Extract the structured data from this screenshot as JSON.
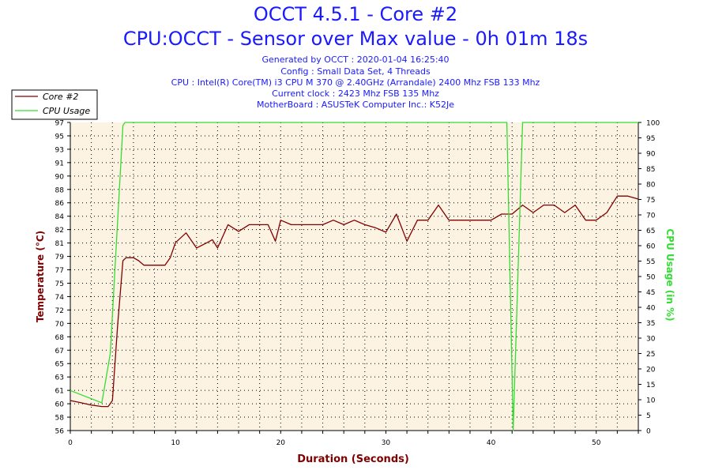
{
  "header": {
    "title": "OCCT 4.5.1 - Core #2",
    "subtitle": "CPU:OCCT - Sensor over Max value - 0h 01m 18s",
    "info": [
      "Generated by OCCT : 2020-01-04 16:25:40",
      "Config : Small Data Set, 4 Threads",
      "CPU : Intel(R) Core(TM) i3 CPU M 370 @ 2.40GHz (Arrandale) 2400 Mhz FSB 133 Mhz",
      "Current clock : 2423 Mhz FSB 135 Mhz",
      "MotherBoard : ASUSTeK Computer Inc.: K52Je"
    ]
  },
  "colors": {
    "temperature": "#800000",
    "usage": "#33dd33",
    "title": "#1a1aff",
    "plot_bg": "#fdf3e2"
  },
  "chart_data": {
    "type": "line",
    "xlabel": "Duration (Seconds)",
    "ylabel_left": "Temperature (°C)",
    "ylabel_right": "CPU Usage (in %)",
    "xlim": [
      0,
      54
    ],
    "ylim_left": [
      56,
      97
    ],
    "ylim_right": [
      0,
      100
    ],
    "x_ticks": [
      "0",
      "10",
      "20",
      "30",
      "40",
      "50"
    ],
    "y_left_ticks": [
      "56",
      "58",
      "60",
      "61",
      "63",
      "65",
      "67",
      "68",
      "70",
      "72",
      "74",
      "75",
      "77",
      "79",
      "81",
      "82",
      "84",
      "86",
      "88",
      "90",
      "91",
      "93",
      "95",
      "97"
    ],
    "y_right_ticks": [
      "0",
      "5",
      "10",
      "15",
      "20",
      "25",
      "30",
      "35",
      "40",
      "45",
      "50",
      "55",
      "60",
      "65",
      "70",
      "75",
      "80",
      "85",
      "90",
      "95",
      "100"
    ],
    "grid": true,
    "legend_position": "top-left",
    "series": [
      {
        "name": "Core #2",
        "axis": "left",
        "x": [
          0,
          1,
          2,
          3,
          3.6,
          4,
          4.5,
          5,
          5.3,
          6,
          6.5,
          7,
          8,
          9,
          9.5,
          10,
          11,
          12,
          13,
          13.5,
          14,
          15,
          16,
          17,
          18,
          18.8,
          19.5,
          20,
          21,
          22,
          23,
          24,
          25,
          26,
          27,
          28,
          29,
          30,
          31,
          32,
          33,
          34,
          35,
          36,
          37,
          38,
          39,
          40,
          41,
          42,
          43,
          44,
          45,
          46,
          47,
          48,
          49,
          50,
          51,
          52,
          53,
          54
        ],
        "y": [
          60,
          59.7,
          59.4,
          59.2,
          59.2,
          60,
          70,
          78.6,
          79,
          79,
          78.6,
          78,
          78,
          78,
          79,
          81,
          82.3,
          80.3,
          81,
          81.4,
          80.3,
          83.4,
          82.5,
          83.4,
          83.4,
          83.4,
          81.2,
          84,
          83.4,
          83.4,
          83.4,
          83.4,
          84,
          83.4,
          84,
          83.4,
          83,
          82.4,
          84.8,
          81.2,
          84,
          84,
          86,
          84,
          84,
          84,
          84,
          84,
          84.8,
          84.8,
          86,
          85,
          86,
          86,
          85,
          86,
          84,
          84,
          85,
          87.2,
          87.2,
          86.8
        ]
      },
      {
        "name": "CPU Usage",
        "axis": "right",
        "x": [
          0,
          3,
          3.8,
          5,
          5.2,
          41,
          41.5,
          42.1,
          43,
          43.2,
          54
        ],
        "y": [
          13,
          9,
          25,
          99,
          100,
          100,
          100,
          0,
          100,
          100,
          100
        ]
      }
    ]
  }
}
